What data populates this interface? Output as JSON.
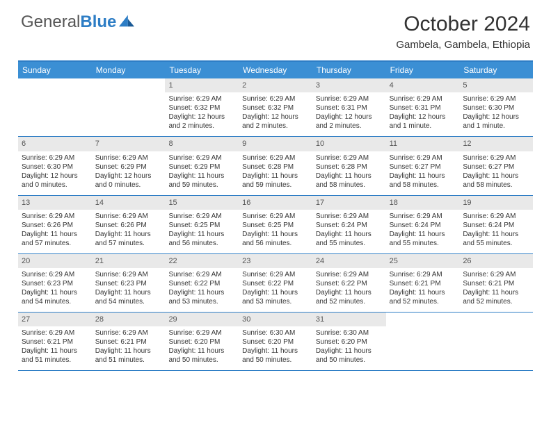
{
  "logo": {
    "textGray": "General",
    "textBlue": "Blue"
  },
  "title": "October 2024",
  "location": "Gambela, Gambela, Ethiopia",
  "colors": {
    "headerBar": "#3b8fd4",
    "borderBlue": "#2d7dc5",
    "dayNumBg": "#e9e9e9",
    "text": "#333333"
  },
  "weekdays": [
    "Sunday",
    "Monday",
    "Tuesday",
    "Wednesday",
    "Thursday",
    "Friday",
    "Saturday"
  ],
  "weeks": [
    [
      {
        "n": "",
        "lines": []
      },
      {
        "n": "",
        "lines": []
      },
      {
        "n": "1",
        "lines": [
          "Sunrise: 6:29 AM",
          "Sunset: 6:32 PM",
          "Daylight: 12 hours and 2 minutes."
        ]
      },
      {
        "n": "2",
        "lines": [
          "Sunrise: 6:29 AM",
          "Sunset: 6:32 PM",
          "Daylight: 12 hours and 2 minutes."
        ]
      },
      {
        "n": "3",
        "lines": [
          "Sunrise: 6:29 AM",
          "Sunset: 6:31 PM",
          "Daylight: 12 hours and 2 minutes."
        ]
      },
      {
        "n": "4",
        "lines": [
          "Sunrise: 6:29 AM",
          "Sunset: 6:31 PM",
          "Daylight: 12 hours and 1 minute."
        ]
      },
      {
        "n": "5",
        "lines": [
          "Sunrise: 6:29 AM",
          "Sunset: 6:30 PM",
          "Daylight: 12 hours and 1 minute."
        ]
      }
    ],
    [
      {
        "n": "6",
        "lines": [
          "Sunrise: 6:29 AM",
          "Sunset: 6:30 PM",
          "Daylight: 12 hours and 0 minutes."
        ]
      },
      {
        "n": "7",
        "lines": [
          "Sunrise: 6:29 AM",
          "Sunset: 6:29 PM",
          "Daylight: 12 hours and 0 minutes."
        ]
      },
      {
        "n": "8",
        "lines": [
          "Sunrise: 6:29 AM",
          "Sunset: 6:29 PM",
          "Daylight: 11 hours and 59 minutes."
        ]
      },
      {
        "n": "9",
        "lines": [
          "Sunrise: 6:29 AM",
          "Sunset: 6:28 PM",
          "Daylight: 11 hours and 59 minutes."
        ]
      },
      {
        "n": "10",
        "lines": [
          "Sunrise: 6:29 AM",
          "Sunset: 6:28 PM",
          "Daylight: 11 hours and 58 minutes."
        ]
      },
      {
        "n": "11",
        "lines": [
          "Sunrise: 6:29 AM",
          "Sunset: 6:27 PM",
          "Daylight: 11 hours and 58 minutes."
        ]
      },
      {
        "n": "12",
        "lines": [
          "Sunrise: 6:29 AM",
          "Sunset: 6:27 PM",
          "Daylight: 11 hours and 58 minutes."
        ]
      }
    ],
    [
      {
        "n": "13",
        "lines": [
          "Sunrise: 6:29 AM",
          "Sunset: 6:26 PM",
          "Daylight: 11 hours and 57 minutes."
        ]
      },
      {
        "n": "14",
        "lines": [
          "Sunrise: 6:29 AM",
          "Sunset: 6:26 PM",
          "Daylight: 11 hours and 57 minutes."
        ]
      },
      {
        "n": "15",
        "lines": [
          "Sunrise: 6:29 AM",
          "Sunset: 6:25 PM",
          "Daylight: 11 hours and 56 minutes."
        ]
      },
      {
        "n": "16",
        "lines": [
          "Sunrise: 6:29 AM",
          "Sunset: 6:25 PM",
          "Daylight: 11 hours and 56 minutes."
        ]
      },
      {
        "n": "17",
        "lines": [
          "Sunrise: 6:29 AM",
          "Sunset: 6:24 PM",
          "Daylight: 11 hours and 55 minutes."
        ]
      },
      {
        "n": "18",
        "lines": [
          "Sunrise: 6:29 AM",
          "Sunset: 6:24 PM",
          "Daylight: 11 hours and 55 minutes."
        ]
      },
      {
        "n": "19",
        "lines": [
          "Sunrise: 6:29 AM",
          "Sunset: 6:24 PM",
          "Daylight: 11 hours and 55 minutes."
        ]
      }
    ],
    [
      {
        "n": "20",
        "lines": [
          "Sunrise: 6:29 AM",
          "Sunset: 6:23 PM",
          "Daylight: 11 hours and 54 minutes."
        ]
      },
      {
        "n": "21",
        "lines": [
          "Sunrise: 6:29 AM",
          "Sunset: 6:23 PM",
          "Daylight: 11 hours and 54 minutes."
        ]
      },
      {
        "n": "22",
        "lines": [
          "Sunrise: 6:29 AM",
          "Sunset: 6:22 PM",
          "Daylight: 11 hours and 53 minutes."
        ]
      },
      {
        "n": "23",
        "lines": [
          "Sunrise: 6:29 AM",
          "Sunset: 6:22 PM",
          "Daylight: 11 hours and 53 minutes."
        ]
      },
      {
        "n": "24",
        "lines": [
          "Sunrise: 6:29 AM",
          "Sunset: 6:22 PM",
          "Daylight: 11 hours and 52 minutes."
        ]
      },
      {
        "n": "25",
        "lines": [
          "Sunrise: 6:29 AM",
          "Sunset: 6:21 PM",
          "Daylight: 11 hours and 52 minutes."
        ]
      },
      {
        "n": "26",
        "lines": [
          "Sunrise: 6:29 AM",
          "Sunset: 6:21 PM",
          "Daylight: 11 hours and 52 minutes."
        ]
      }
    ],
    [
      {
        "n": "27",
        "lines": [
          "Sunrise: 6:29 AM",
          "Sunset: 6:21 PM",
          "Daylight: 11 hours and 51 minutes."
        ]
      },
      {
        "n": "28",
        "lines": [
          "Sunrise: 6:29 AM",
          "Sunset: 6:21 PM",
          "Daylight: 11 hours and 51 minutes."
        ]
      },
      {
        "n": "29",
        "lines": [
          "Sunrise: 6:29 AM",
          "Sunset: 6:20 PM",
          "Daylight: 11 hours and 50 minutes."
        ]
      },
      {
        "n": "30",
        "lines": [
          "Sunrise: 6:30 AM",
          "Sunset: 6:20 PM",
          "Daylight: 11 hours and 50 minutes."
        ]
      },
      {
        "n": "31",
        "lines": [
          "Sunrise: 6:30 AM",
          "Sunset: 6:20 PM",
          "Daylight: 11 hours and 50 minutes."
        ]
      },
      {
        "n": "",
        "lines": []
      },
      {
        "n": "",
        "lines": []
      }
    ]
  ]
}
